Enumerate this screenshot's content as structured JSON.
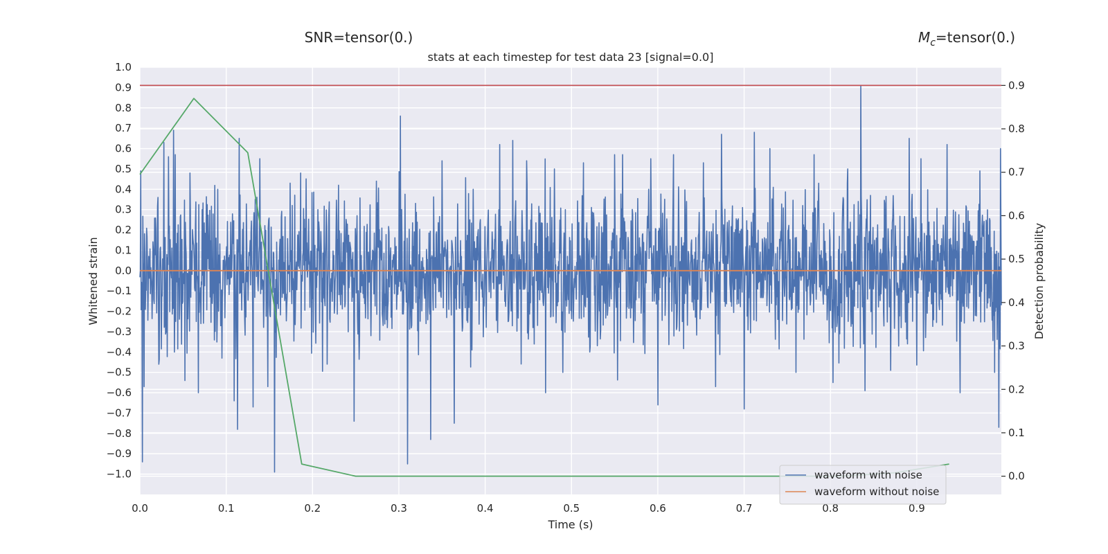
{
  "chart_data": {
    "type": "line",
    "snr_label": "SNR=tensor(0.)",
    "mc_label_symbol": "M",
    "mc_label_sub": "c",
    "mc_label_value": "=tensor(0.)",
    "title": "stats at each timestep for test data 23 [signal=0.0]",
    "xlabel": "Time (s)",
    "ylabel": "Whitened strain",
    "y2label": "Detection probability",
    "xlim": [
      0.0,
      0.998
    ],
    "ylim": [
      -1.1,
      1.0
    ],
    "y2lim": [
      -0.042,
      0.942
    ],
    "xticks": [
      0.0,
      0.1,
      0.2,
      0.3,
      0.4,
      0.5,
      0.6,
      0.7,
      0.8,
      0.9
    ],
    "xtick_labels": [
      "0.0",
      "0.1",
      "0.2",
      "0.3",
      "0.4",
      "0.5",
      "0.6",
      "0.7",
      "0.8",
      "0.9"
    ],
    "yticks": [
      1.0,
      0.9,
      0.8,
      0.7,
      0.6,
      0.5,
      0.4,
      0.3,
      0.2,
      0.1,
      0.0,
      -0.1,
      -0.2,
      -0.3,
      -0.4,
      -0.5,
      -0.6,
      -0.7,
      -0.8,
      -0.9,
      -1.0
    ],
    "ytick_labels": [
      "1.0",
      "0.9",
      "0.8",
      "0.7",
      "0.6",
      "0.5",
      "0.4",
      "0.3",
      "0.2",
      "0.1",
      "0.0",
      "−0.1",
      "−0.2",
      "−0.3",
      "−0.4",
      "−0.5",
      "−0.6",
      "−0.7",
      "−0.8",
      "−0.9",
      "−1.0"
    ],
    "y2ticks": [
      0.9,
      0.8,
      0.7,
      0.6,
      0.5,
      0.4,
      0.3,
      0.2,
      0.1,
      0.0
    ],
    "y2tick_labels": [
      "0.9",
      "0.8",
      "0.7",
      "0.6",
      "0.5",
      "0.4",
      "0.3",
      "0.2",
      "0.1",
      "0.0"
    ],
    "grid": true,
    "legend_position": "lower-right",
    "series": [
      {
        "name": "waveform with noise",
        "axis": "left",
        "color": "#4c72b0",
        "noise_points": 2048,
        "spikes": [
          {
            "x": 0.001,
            "y": 0.49
          },
          {
            "x": 0.003,
            "y": -0.94
          },
          {
            "x": 0.005,
            "y": -0.57
          },
          {
            "x": 0.021,
            "y": 0.36
          },
          {
            "x": 0.022,
            "y": -0.46
          },
          {
            "x": 0.028,
            "y": 0.63
          },
          {
            "x": 0.033,
            "y": 0.56
          },
          {
            "x": 0.039,
            "y": 0.69
          },
          {
            "x": 0.04,
            "y": -0.4
          },
          {
            "x": 0.041,
            "y": 0.57
          },
          {
            "x": 0.052,
            "y": -0.54
          },
          {
            "x": 0.058,
            "y": 0.48
          },
          {
            "x": 0.068,
            "y": -0.6
          },
          {
            "x": 0.072,
            "y": 0.3
          },
          {
            "x": 0.09,
            "y": 0.4
          },
          {
            "x": 0.095,
            "y": -0.43
          },
          {
            "x": 0.109,
            "y": -0.64
          },
          {
            "x": 0.113,
            "y": -0.78
          },
          {
            "x": 0.115,
            "y": 0.65
          },
          {
            "x": 0.131,
            "y": -0.67
          },
          {
            "x": 0.139,
            "y": 0.55
          },
          {
            "x": 0.148,
            "y": -0.57
          },
          {
            "x": 0.156,
            "y": -0.99
          },
          {
            "x": 0.174,
            "y": 0.43
          },
          {
            "x": 0.186,
            "y": 0.48
          },
          {
            "x": 0.206,
            "y": 0.3
          },
          {
            "x": 0.23,
            "y": 0.42
          },
          {
            "x": 0.248,
            "y": -0.74
          },
          {
            "x": 0.274,
            "y": 0.44
          },
          {
            "x": 0.302,
            "y": 0.76
          },
          {
            "x": 0.31,
            "y": -0.95
          },
          {
            "x": 0.337,
            "y": -0.83
          },
          {
            "x": 0.35,
            "y": 0.54
          },
          {
            "x": 0.364,
            "y": -0.75
          },
          {
            "x": 0.386,
            "y": 0.4
          },
          {
            "x": 0.417,
            "y": 0.62
          },
          {
            "x": 0.432,
            "y": 0.64
          },
          {
            "x": 0.448,
            "y": 0.54
          },
          {
            "x": 0.47,
            "y": -0.6
          },
          {
            "x": 0.48,
            "y": 0.5
          },
          {
            "x": 0.49,
            "y": -0.5
          },
          {
            "x": 0.514,
            "y": 0.53
          },
          {
            "x": 0.55,
            "y": 0.57
          },
          {
            "x": 0.559,
            "y": 0.57
          },
          {
            "x": 0.592,
            "y": 0.55
          },
          {
            "x": 0.6,
            "y": -0.66
          },
          {
            "x": 0.618,
            "y": 0.57
          },
          {
            "x": 0.653,
            "y": 0.53
          },
          {
            "x": 0.667,
            "y": -0.57
          },
          {
            "x": 0.674,
            "y": 0.67
          },
          {
            "x": 0.7,
            "y": -0.68
          },
          {
            "x": 0.712,
            "y": 0.68
          },
          {
            "x": 0.73,
            "y": 0.6
          },
          {
            "x": 0.76,
            "y": -0.5
          },
          {
            "x": 0.781,
            "y": 0.57
          },
          {
            "x": 0.803,
            "y": -0.55
          },
          {
            "x": 0.82,
            "y": 0.5
          },
          {
            "x": 0.835,
            "y": 0.91
          },
          {
            "x": 0.84,
            "y": -0.59
          },
          {
            "x": 0.87,
            "y": -0.49
          },
          {
            "x": 0.891,
            "y": 0.65
          },
          {
            "x": 0.905,
            "y": 0.55
          },
          {
            "x": 0.935,
            "y": 0.62
          },
          {
            "x": 0.95,
            "y": -0.6
          },
          {
            "x": 0.973,
            "y": 0.49
          },
          {
            "x": 0.99,
            "y": -0.5
          },
          {
            "x": 0.995,
            "y": -0.77
          },
          {
            "x": 0.997,
            "y": 0.6
          }
        ]
      },
      {
        "name": "waveform without noise",
        "axis": "left",
        "color": "#dd8452",
        "x": [
          0.0,
          0.998
        ],
        "y": [
          0.0,
          0.0
        ]
      },
      {
        "axis": "right",
        "color": "#55a868",
        "x": [
          0.0,
          0.0625,
          0.125,
          0.1875,
          0.25,
          0.3125,
          0.375,
          0.4375,
          0.5,
          0.5625,
          0.625,
          0.6875,
          0.75,
          0.8125,
          0.875,
          0.9375
        ],
        "y": [
          0.695,
          0.87,
          0.745,
          0.028,
          0.0,
          0.0,
          0.0,
          0.0,
          0.0,
          0.0,
          0.0,
          0.0,
          0.0,
          0.0,
          0.008,
          0.028
        ]
      },
      {
        "axis": "right",
        "color": "#c44e52",
        "x": [
          0.0,
          0.998
        ],
        "y": [
          0.9,
          0.9
        ]
      }
    ]
  }
}
